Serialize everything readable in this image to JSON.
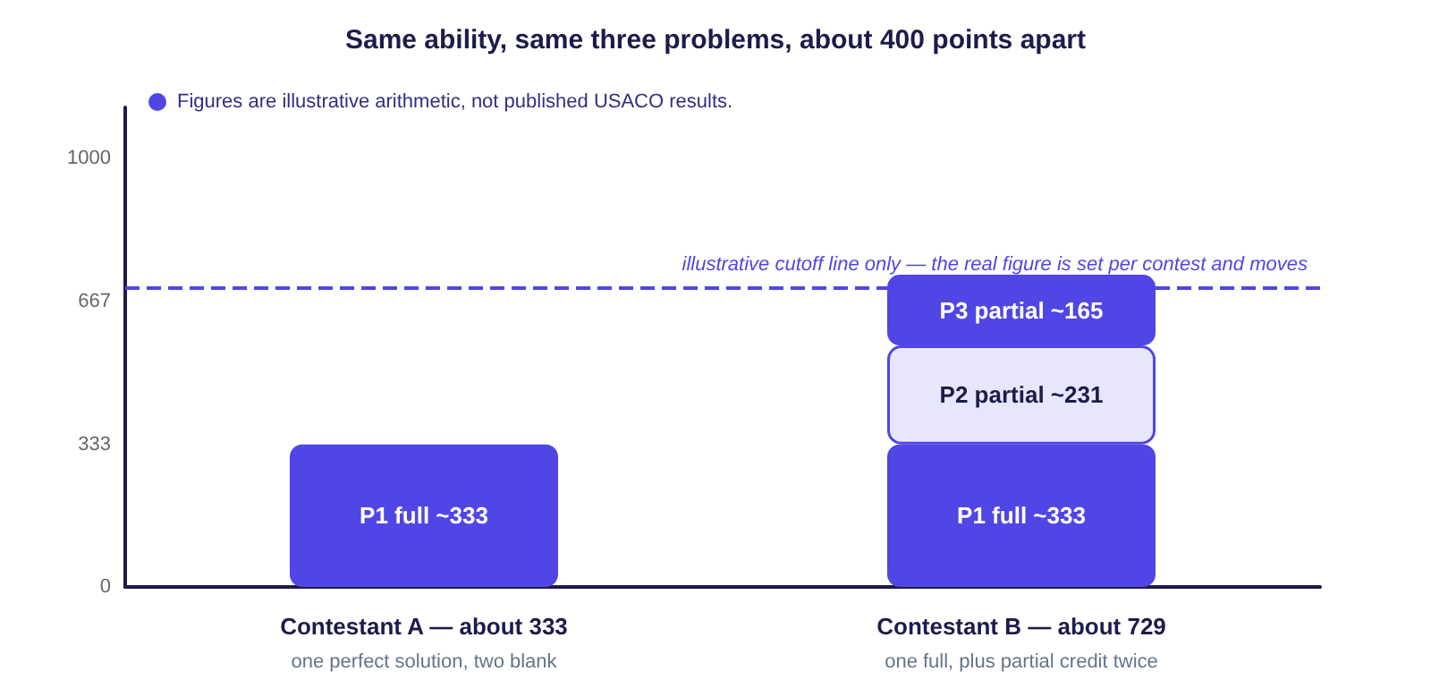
{
  "chart_data": {
    "type": "bar",
    "title": "Same ability, same three problems, about 400 points apart",
    "categories": [
      "Contestant A — about 333\none perfect solution, two blank",
      "Contestant B — about 729\none full, plus partial credit twice"
    ],
    "stacked": true,
    "series": [
      {
        "color": "#5046e5",
        "values": [
          333,
          333
        ],
        "value_labels": [
          "P1 full ~333",
          "P1 full ~333"
        ]
      },
      {
        "color": "#e8e6fa",
        "values": [
          null,
          231
        ],
        "value_labels": [
          null,
          "P2 partial ~231"
        ]
      },
      {
        "color": "#5046e5",
        "values": [
          null,
          165
        ],
        "value_labels": [
          null,
          "P3 partial ~165"
        ]
      }
    ],
    "ylim": [
      0,
      1120
    ],
    "yticks": [
      0,
      333,
      667,
      1000
    ],
    "grid": false,
    "ref_lines": [
      {
        "axis": "y",
        "value": 700,
        "label": "illustrative cutoff line only — the real figure is set per contest and moves",
        "color": "#5046e5",
        "line_style": "dashed"
      }
    ],
    "annotations": [
      "Figures are illustrative arithmetic, not published USACO results."
    ]
  }
}
